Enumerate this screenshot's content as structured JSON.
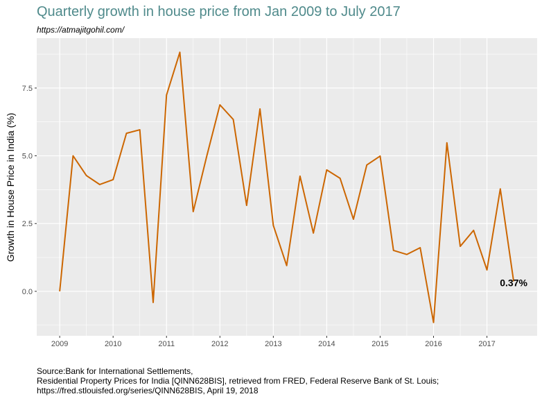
{
  "title": "Quarterly growth in house price from Jan 2009 to July 2017",
  "subtitle": "https://atmajitgohil.com/",
  "caption": [
    "Source:Bank for International Settlements,",
    "Residential Property Prices for India [QINN628BIS], retrieved from FRED, Federal Reserve Bank of St. Louis;",
    "https://fred.stlouisfed.org/series/QINN628BIS, April 19, 2018"
  ],
  "chart_data": {
    "type": "line",
    "title": "Quarterly growth in house price from Jan 2009 to July 2017",
    "xlabel": "",
    "ylabel": "Growth in House Price in India (%)",
    "xlim": [
      2008.57,
      2017.94
    ],
    "ylim": [
      -1.64,
      9.34
    ],
    "x_ticks": [
      2009,
      2010,
      2011,
      2012,
      2013,
      2014,
      2015,
      2016,
      2017
    ],
    "x_tick_labels": [
      "2009",
      "2010",
      "2011",
      "2012",
      "2013",
      "2014",
      "2015",
      "2016",
      "2017"
    ],
    "y_ticks": [
      0,
      2.5,
      5,
      7.5
    ],
    "y_tick_labels": [
      "0.0",
      "2.5",
      "5.0",
      "7.5"
    ],
    "grid": true,
    "line_color": "#CC6600",
    "panel_background": "#EBEBEB",
    "x": [
      2009.0,
      2009.25,
      2009.5,
      2009.75,
      2010.0,
      2010.25,
      2010.5,
      2010.75,
      2011.0,
      2011.25,
      2011.5,
      2011.75,
      2012.0,
      2012.25,
      2012.5,
      2012.75,
      2013.0,
      2013.25,
      2013.5,
      2013.75,
      2014.0,
      2014.25,
      2014.5,
      2014.75,
      2015.0,
      2015.25,
      2015.5,
      2015.75,
      2016.0,
      2016.25,
      2016.5,
      2016.75,
      2017.0,
      2017.25,
      2017.5
    ],
    "y": [
      0.0,
      5.0,
      4.27,
      3.94,
      4.12,
      5.83,
      5.96,
      -0.41,
      7.24,
      8.82,
      2.94,
      4.96,
      6.88,
      6.34,
      3.17,
      6.73,
      2.43,
      0.95,
      4.25,
      2.15,
      4.48,
      4.17,
      2.66,
      4.66,
      4.99,
      1.51,
      1.36,
      1.61,
      -1.15,
      5.48,
      1.66,
      2.25,
      0.79,
      3.78,
      0.37
    ],
    "annotation": {
      "text": "0.37%",
      "x": 2017.5,
      "y": 0.37
    }
  }
}
